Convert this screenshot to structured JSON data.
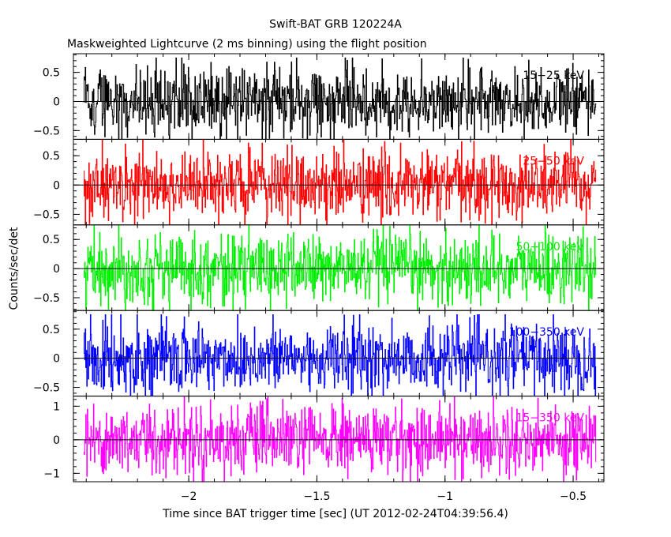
{
  "chart_data": {
    "type": "line",
    "title": "Swift-BAT GRB 120224A",
    "subtitle": "Maskweighted Lightcurve (2 ms binning) using the flight position",
    "xlabel": "Time since BAT trigger time [sec] (UT 2012-02-24T04:39:56.4)",
    "ylabel": "Counts/sec/det",
    "xlim": [
      -2.45,
      -0.38
    ],
    "x_ticks": [
      -2,
      -1.5,
      -1,
      -0.5
    ],
    "x_tick_labels": [
      "−2",
      "−1.5",
      "−1",
      "−0.5"
    ],
    "x_data_range": [
      -2.41,
      -0.41
    ],
    "bin_width": 0.002,
    "grid": false,
    "panels": [
      {
        "name": "15-25 keV",
        "label": "15−25 keV",
        "color": "#000000",
        "ylim": [
          -0.65,
          0.82
        ],
        "yticks": [
          -0.5,
          0,
          0.5
        ],
        "ytick_labels": [
          "−0.5",
          "0",
          "0.5"
        ],
        "amplitude": 0.3
      },
      {
        "name": "25-50 keV",
        "label": "25−50 keV",
        "color": "#ff0000",
        "ylim": [
          -0.68,
          0.78
        ],
        "yticks": [
          -0.5,
          0,
          0.5
        ],
        "ytick_labels": [
          "−0.5",
          "0",
          "0.5"
        ],
        "amplitude": 0.3
      },
      {
        "name": "50-100 keV",
        "label": "50−100 keV",
        "color": "#00ee00",
        "ylim": [
          -0.72,
          0.75
        ],
        "yticks": [
          -0.5,
          0,
          0.5
        ],
        "ytick_labels": [
          "−0.5",
          "0",
          "0.5"
        ],
        "amplitude": 0.3
      },
      {
        "name": "100-350 keV",
        "label": "100−350 keV",
        "color": "#0000ff",
        "ylim": [
          -0.65,
          0.82
        ],
        "yticks": [
          -0.5,
          0,
          0.5
        ],
        "ytick_labels": [
          "−0.5",
          "0",
          "0.5"
        ],
        "amplitude": 0.3
      },
      {
        "name": "15-350 keV",
        "label": "15−350 keV",
        "color": "#ff00ff",
        "ylim": [
          -1.25,
          1.3
        ],
        "yticks": [
          -1,
          0,
          1
        ],
        "ytick_labels": [
          "−1",
          "0",
          "1"
        ],
        "amplitude": 0.52
      }
    ]
  }
}
